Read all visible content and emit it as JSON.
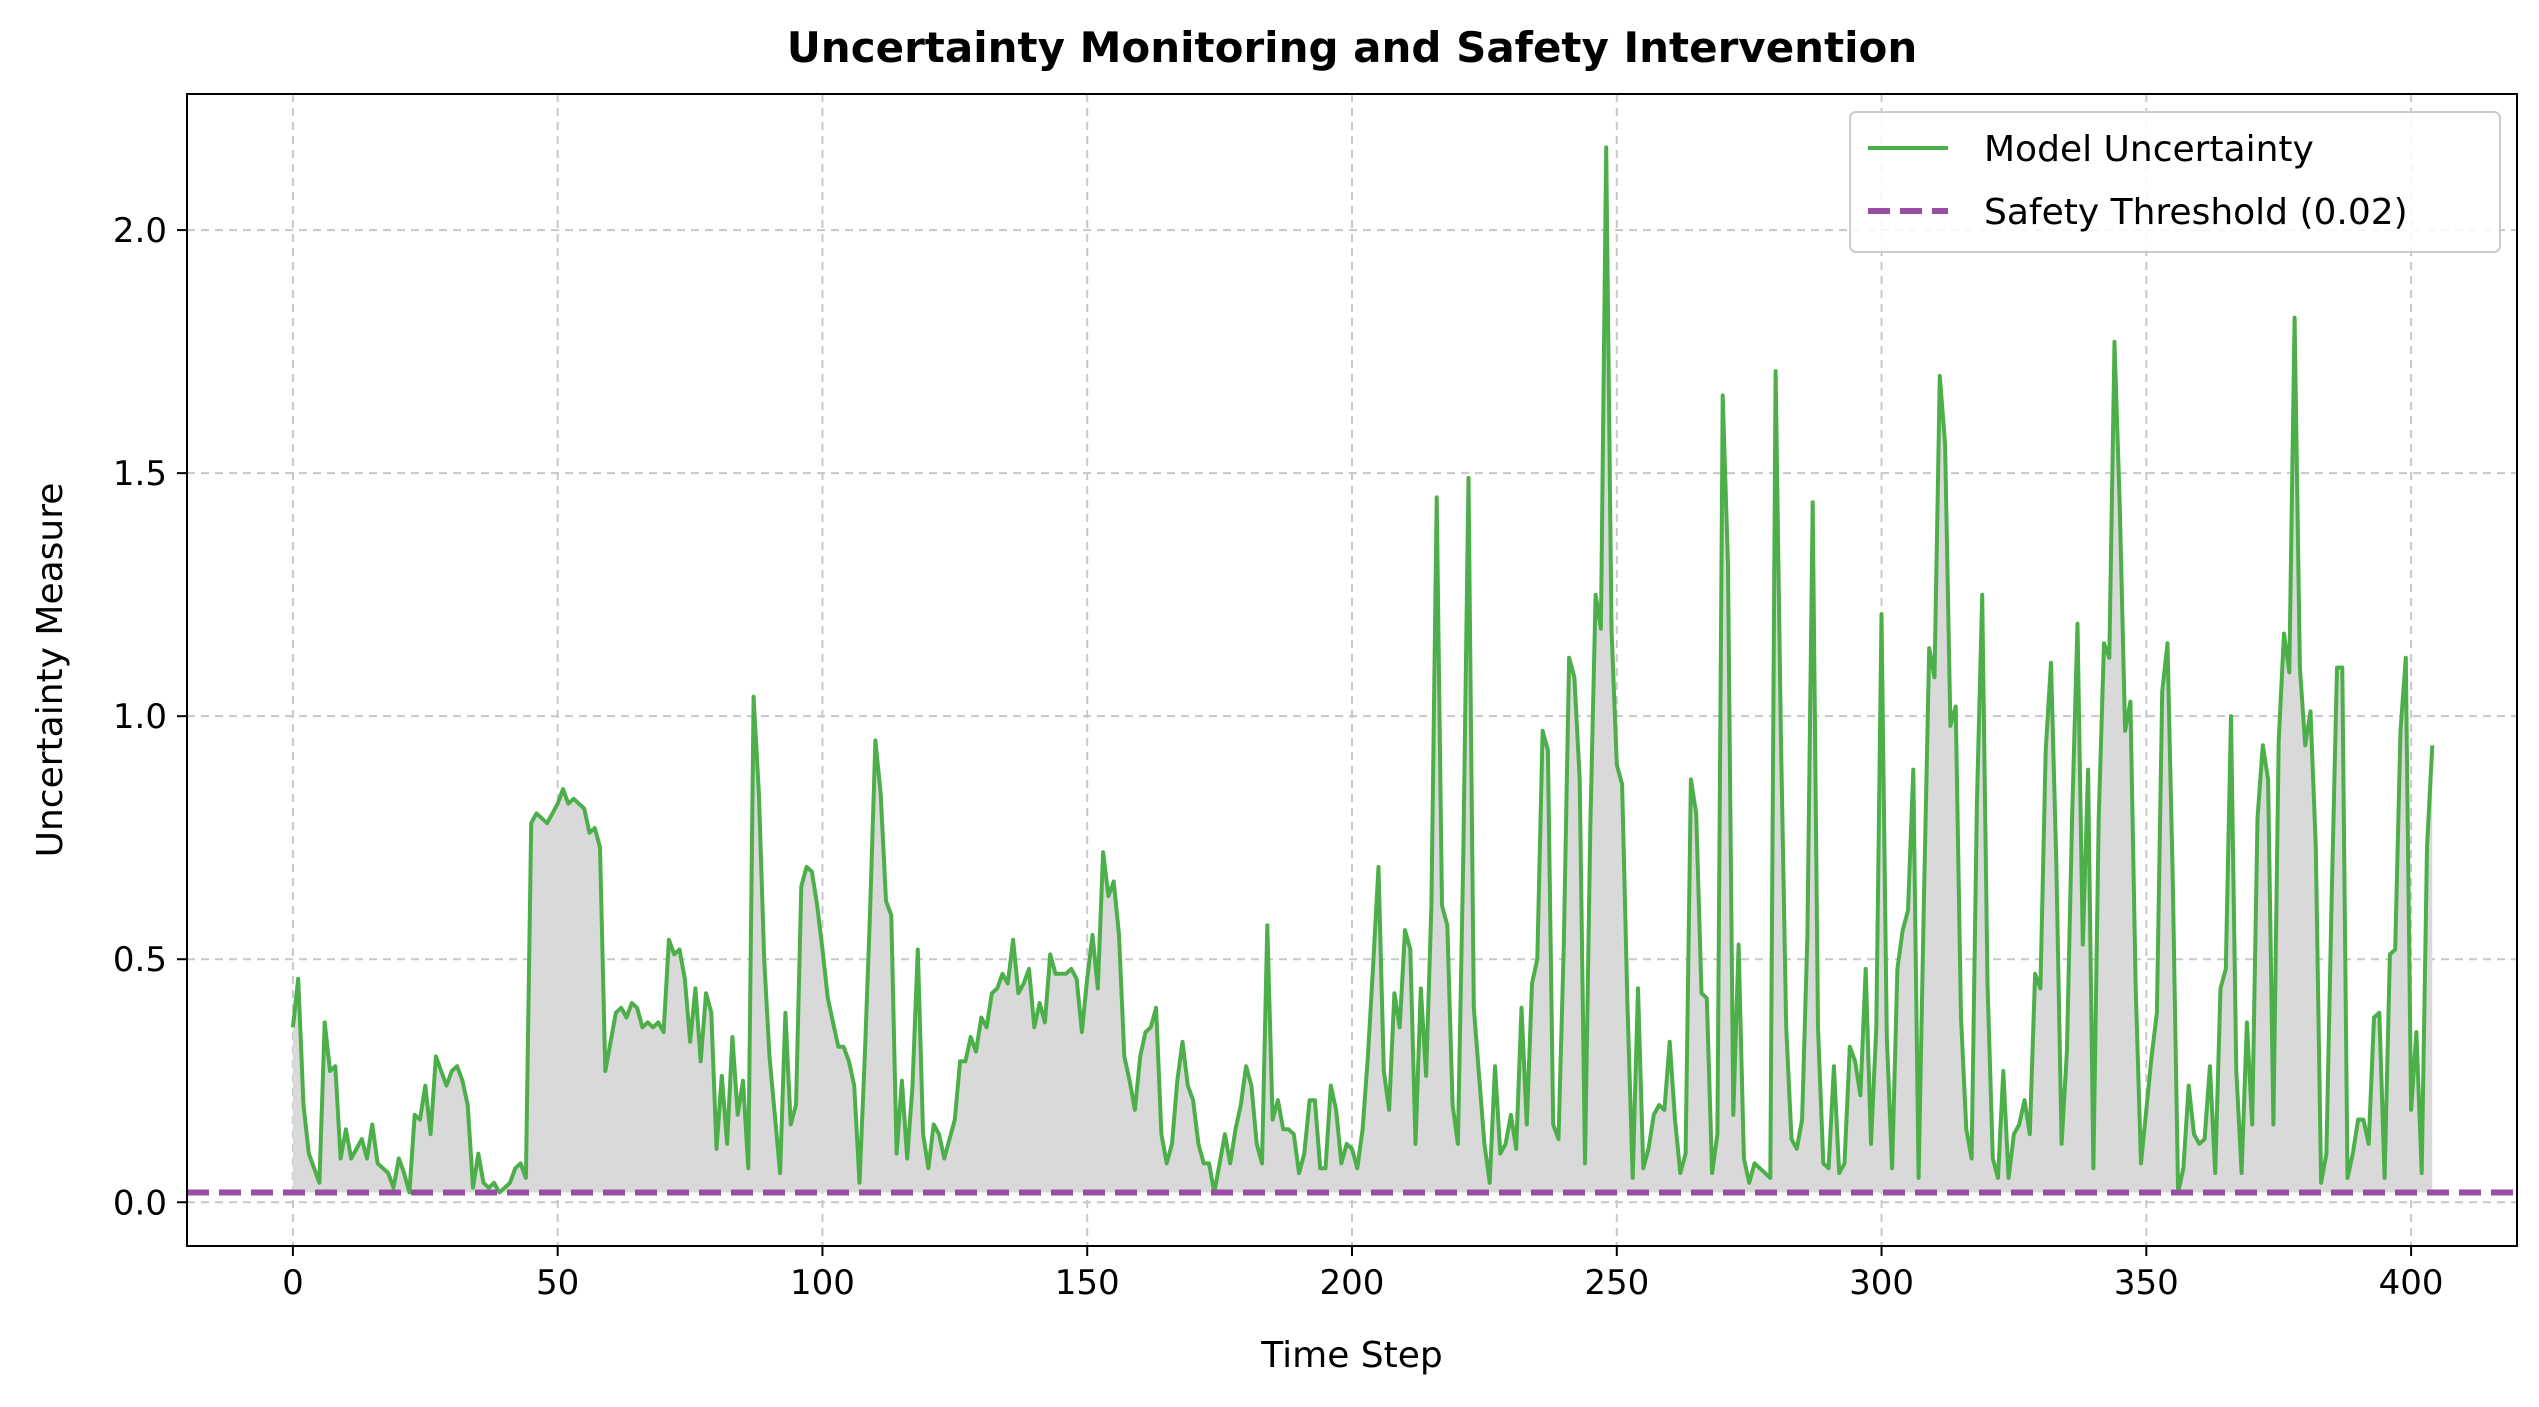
{
  "chart_data": {
    "type": "line",
    "title": "Uncertainty Monitoring and Safety Intervention",
    "xlabel": "Time Step",
    "ylabel": "Uncertainty Measure",
    "xlim": [
      -20,
      420
    ],
    "ylim": [
      -0.09,
      2.28
    ],
    "xticks": [
      0,
      50,
      100,
      150,
      200,
      250,
      300,
      350,
      400
    ],
    "xtick_labels": [
      "0",
      "50",
      "100",
      "150",
      "200",
      "250",
      "300",
      "350",
      "400"
    ],
    "yticks": [
      0.0,
      0.5,
      1.0,
      1.5,
      2.0
    ],
    "ytick_labels": [
      "0.0",
      "0.5",
      "1.0",
      "1.5",
      "2.0"
    ],
    "grid": true,
    "legend_position": "top-right",
    "colors": {
      "line": "#4daf4a",
      "threshold": "#984ea3",
      "fill": "#d9d9d9",
      "grid": "#c8c8c8"
    },
    "series": [
      {
        "name": "Model Uncertainty",
        "style": "solid",
        "x_start": 0,
        "x_step": 1,
        "values": [
          0.36,
          0.46,
          0.2,
          0.1,
          0.07,
          0.04,
          0.37,
          0.27,
          0.28,
          0.09,
          0.15,
          0.09,
          0.11,
          0.13,
          0.09,
          0.16,
          0.08,
          0.07,
          0.06,
          0.03,
          0.09,
          0.06,
          0.02,
          0.18,
          0.17,
          0.24,
          0.14,
          0.3,
          0.27,
          0.24,
          0.27,
          0.28,
          0.25,
          0.2,
          0.03,
          0.1,
          0.04,
          0.03,
          0.04,
          0.02,
          0.03,
          0.04,
          0.07,
          0.08,
          0.05,
          0.78,
          0.8,
          0.79,
          0.78,
          0.8,
          0.82,
          0.85,
          0.82,
          0.83,
          0.82,
          0.81,
          0.76,
          0.77,
          0.73,
          0.27,
          0.33,
          0.39,
          0.4,
          0.38,
          0.41,
          0.4,
          0.36,
          0.37,
          0.36,
          0.37,
          0.35,
          0.54,
          0.51,
          0.52,
          0.46,
          0.33,
          0.44,
          0.29,
          0.43,
          0.39,
          0.11,
          0.26,
          0.12,
          0.34,
          0.18,
          0.25,
          0.07,
          1.04,
          0.84,
          0.5,
          0.3,
          0.18,
          0.06,
          0.39,
          0.16,
          0.2,
          0.65,
          0.69,
          0.68,
          0.61,
          0.52,
          0.42,
          0.37,
          0.32,
          0.32,
          0.29,
          0.24,
          0.04,
          0.3,
          0.6,
          0.95,
          0.84,
          0.62,
          0.59,
          0.1,
          0.25,
          0.09,
          0.24,
          0.52,
          0.14,
          0.07,
          0.16,
          0.14,
          0.09,
          0.13,
          0.17,
          0.29,
          0.29,
          0.34,
          0.31,
          0.38,
          0.36,
          0.43,
          0.44,
          0.47,
          0.45,
          0.54,
          0.43,
          0.45,
          0.48,
          0.36,
          0.41,
          0.37,
          0.51,
          0.47,
          0.47,
          0.47,
          0.48,
          0.46,
          0.35,
          0.46,
          0.55,
          0.44,
          0.72,
          0.63,
          0.66,
          0.55,
          0.3,
          0.25,
          0.19,
          0.3,
          0.35,
          0.36,
          0.4,
          0.14,
          0.08,
          0.12,
          0.25,
          0.33,
          0.24,
          0.21,
          0.12,
          0.08,
          0.08,
          0.02,
          0.08,
          0.14,
          0.08,
          0.15,
          0.2,
          0.28,
          0.24,
          0.12,
          0.08,
          0.57,
          0.17,
          0.21,
          0.15,
          0.15,
          0.14,
          0.06,
          0.1,
          0.21,
          0.21,
          0.07,
          0.07,
          0.24,
          0.19,
          0.08,
          0.12,
          0.11,
          0.07,
          0.15,
          0.3,
          0.49,
          0.69,
          0.27,
          0.19,
          0.43,
          0.36,
          0.56,
          0.52,
          0.12,
          0.44,
          0.26,
          0.61,
          1.45,
          0.61,
          0.57,
          0.2,
          0.12,
          0.7,
          1.49,
          0.4,
          0.26,
          0.12,
          0.04,
          0.28,
          0.1,
          0.12,
          0.18,
          0.11,
          0.4,
          0.16,
          0.45,
          0.5,
          0.97,
          0.93,
          0.16,
          0.13,
          0.53,
          1.12,
          1.08,
          0.87,
          0.08,
          0.77,
          1.25,
          1.18,
          2.17,
          1.18,
          0.9,
          0.86,
          0.41,
          0.05,
          0.44,
          0.07,
          0.11,
          0.18,
          0.2,
          0.19,
          0.33,
          0.17,
          0.06,
          0.1,
          0.87,
          0.8,
          0.43,
          0.42,
          0.06,
          0.14,
          1.66,
          1.31,
          0.18,
          0.53,
          0.09,
          0.04,
          0.08,
          0.07,
          0.06,
          0.05,
          1.71,
          0.96,
          0.36,
          0.13,
          0.11,
          0.17,
          0.55,
          1.44,
          0.36,
          0.08,
          0.07,
          0.28,
          0.06,
          0.08,
          0.32,
          0.29,
          0.22,
          0.48,
          0.12,
          0.36,
          1.21,
          0.34,
          0.07,
          0.48,
          0.56,
          0.6,
          0.89,
          0.05,
          0.62,
          1.14,
          1.08,
          1.7,
          1.56,
          0.98,
          1.02,
          0.38,
          0.15,
          0.09,
          0.82,
          1.25,
          0.45,
          0.09,
          0.05,
          0.27,
          0.05,
          0.14,
          0.16,
          0.21,
          0.14,
          0.47,
          0.44,
          0.93,
          1.11,
          0.7,
          0.12,
          0.31,
          0.8,
          1.19,
          0.53,
          0.89,
          0.07,
          0.79,
          1.15,
          1.12,
          1.77,
          1.43,
          0.97,
          1.03,
          0.44,
          0.08,
          0.19,
          0.3,
          0.39,
          1.05,
          1.15,
          0.66,
          0.02,
          0.07,
          0.24,
          0.14,
          0.12,
          0.13,
          0.28,
          0.06,
          0.44,
          0.48,
          1.0,
          0.27,
          0.06,
          0.37,
          0.16,
          0.79,
          0.94,
          0.87,
          0.16,
          0.95,
          1.17,
          1.09,
          1.82,
          1.1,
          0.94,
          1.01,
          0.73,
          0.04,
          0.1,
          0.63,
          1.1,
          1.1,
          0.05,
          0.1,
          0.17,
          0.17,
          0.12,
          0.38,
          0.39,
          0.05,
          0.51,
          0.52,
          0.97,
          1.12,
          0.19,
          0.35,
          0.06,
          0.73,
          0.94
        ]
      },
      {
        "name": "Safety Threshold (0.02)",
        "style": "dashed",
        "value": 0.02
      }
    ]
  }
}
